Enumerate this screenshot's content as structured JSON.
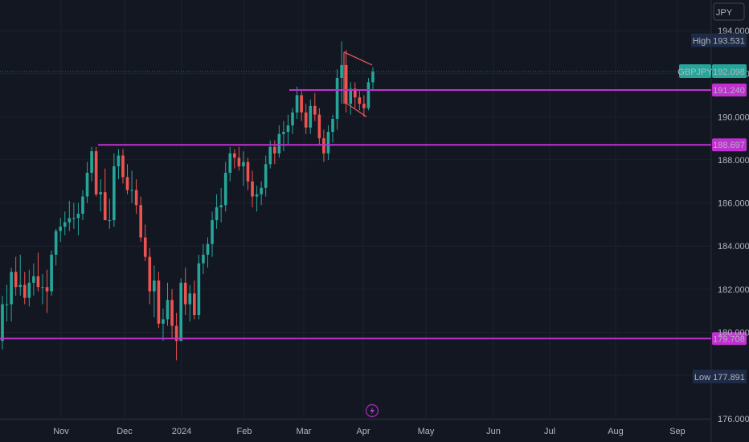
{
  "currency_button": "JPY",
  "symbol": "GBPJPY",
  "last_price": "192.098",
  "high": {
    "label": "High",
    "value": "193.531"
  },
  "low": {
    "label": "Low",
    "value": "177.891"
  },
  "colors": {
    "background": "#131722",
    "up": "#26a69a",
    "down": "#ef5350",
    "level_line": "#c030d0",
    "pattern_line": "#f05a5a",
    "grid": "#1e222d"
  },
  "chart_data": {
    "type": "candlestick",
    "price_axis": {
      "ticks": [
        "194.000",
        "192.000",
        "190.000",
        "188.000",
        "186.000",
        "184.000",
        "182.000",
        "180.000",
        "176.000"
      ],
      "ylim": [
        176,
        195.3
      ]
    },
    "time_axis": {
      "ticks": [
        "Nov",
        "Dec",
        "2024",
        "Feb",
        "Mar",
        "Apr",
        "May",
        "Jun",
        "Jul",
        "Aug",
        "Sep"
      ]
    },
    "horizontal_levels": [
      "191.240",
      "188.697",
      "179.708"
    ],
    "candles": [
      [
        179.6,
        181.7,
        179.2,
        181.3
      ],
      [
        181.3,
        182.2,
        180.5,
        181.3
      ],
      [
        181.3,
        183.0,
        180.5,
        182.8
      ],
      [
        182.8,
        183.5,
        181.7,
        182.1
      ],
      [
        182.1,
        183.6,
        181.7,
        182.2
      ],
      [
        182.2,
        182.8,
        181.3,
        181.6
      ],
      [
        181.6,
        182.9,
        181.2,
        182.3
      ],
      [
        182.3,
        183.2,
        181.7,
        182.6
      ],
      [
        182.6,
        183.7,
        181.9,
        182.1
      ],
      [
        182.1,
        182.7,
        181.3,
        182.1
      ],
      [
        182.1,
        182.9,
        180.9,
        181.9
      ],
      [
        181.9,
        183.8,
        181.7,
        183.6
      ],
      [
        183.6,
        184.8,
        183.1,
        184.7
      ],
      [
        184.7,
        185.3,
        184.2,
        184.9
      ],
      [
        184.9,
        185.6,
        184.5,
        185.1
      ],
      [
        185.1,
        186.1,
        184.7,
        185.3
      ],
      [
        185.3,
        186.0,
        184.8,
        185.3
      ],
      [
        185.3,
        186.0,
        184.5,
        185.5
      ],
      [
        185.5,
        186.6,
        185.2,
        186.3
      ],
      [
        186.3,
        187.9,
        186.0,
        187.4
      ],
      [
        187.4,
        188.6,
        187.0,
        188.4
      ],
      [
        188.4,
        188.6,
        186.3,
        186.4
      ],
      [
        186.4,
        187.1,
        185.6,
        186.5
      ],
      [
        186.5,
        187.6,
        185.2,
        185.2
      ],
      [
        185.2,
        186.2,
        184.8,
        185.2
      ],
      [
        185.2,
        188.3,
        184.9,
        187.7
      ],
      [
        187.7,
        188.5,
        187.1,
        188.2
      ],
      [
        188.2,
        188.5,
        186.9,
        187.2
      ],
      [
        187.2,
        187.8,
        186.4,
        186.6
      ],
      [
        186.6,
        187.5,
        186.0,
        186.6
      ],
      [
        186.6,
        187.1,
        185.5,
        185.9
      ],
      [
        185.9,
        186.3,
        184.2,
        184.4
      ],
      [
        184.4,
        185.0,
        183.3,
        183.5
      ],
      [
        183.5,
        183.9,
        181.3,
        181.9
      ],
      [
        181.9,
        183.1,
        180.7,
        182.4
      ],
      [
        182.4,
        182.8,
        180.2,
        180.4
      ],
      [
        180.4,
        181.1,
        179.6,
        180.6
      ],
      [
        180.6,
        182.3,
        180.3,
        181.5
      ],
      [
        181.5,
        182.0,
        179.7,
        180.3
      ],
      [
        180.3,
        180.9,
        178.7,
        179.6
      ],
      [
        179.6,
        182.5,
        179.6,
        182.3
      ],
      [
        182.3,
        183.0,
        180.8,
        181.3
      ],
      [
        181.3,
        182.2,
        180.5,
        181.8
      ],
      [
        181.8,
        182.4,
        180.6,
        180.8
      ],
      [
        180.8,
        183.6,
        180.6,
        183.2
      ],
      [
        183.2,
        184.1,
        182.7,
        183.6
      ],
      [
        183.6,
        184.4,
        183.0,
        184.1
      ],
      [
        184.1,
        185.6,
        183.5,
        185.2
      ],
      [
        185.2,
        186.4,
        184.8,
        185.8
      ],
      [
        185.8,
        186.7,
        185.1,
        185.9
      ],
      [
        185.9,
        187.9,
        185.6,
        187.4
      ],
      [
        187.4,
        188.6,
        187.0,
        188.3
      ],
      [
        188.3,
        188.5,
        187.6,
        188.1
      ],
      [
        188.1,
        188.6,
        187.5,
        187.7
      ],
      [
        187.7,
        188.4,
        186.8,
        187.9
      ],
      [
        187.9,
        188.1,
        186.6,
        187.0
      ],
      [
        187.0,
        187.5,
        185.8,
        186.3
      ],
      [
        186.3,
        186.8,
        185.6,
        186.4
      ],
      [
        186.4,
        187.0,
        185.9,
        186.7
      ],
      [
        186.7,
        188.2,
        186.3,
        187.8
      ],
      [
        187.8,
        188.9,
        187.6,
        188.6
      ],
      [
        188.6,
        188.9,
        187.8,
        188.3
      ],
      [
        188.3,
        189.6,
        188.1,
        189.2
      ],
      [
        189.2,
        189.8,
        188.4,
        189.3
      ],
      [
        189.3,
        190.1,
        188.7,
        189.6
      ],
      [
        189.6,
        190.4,
        189.2,
        190.2
      ],
      [
        190.2,
        191.4,
        189.9,
        191.0
      ],
      [
        191.0,
        191.2,
        189.8,
        190.2
      ],
      [
        190.2,
        190.6,
        189.2,
        189.5
      ],
      [
        189.5,
        190.8,
        189.2,
        190.5
      ],
      [
        190.5,
        191.1,
        189.8,
        190.1
      ],
      [
        190.1,
        190.4,
        188.7,
        189.0
      ],
      [
        189.0,
        189.4,
        187.9,
        188.3
      ],
      [
        188.3,
        189.6,
        188.0,
        189.3
      ],
      [
        189.3,
        190.1,
        188.8,
        189.9
      ],
      [
        189.9,
        192.2,
        189.4,
        191.8
      ],
      [
        191.8,
        193.5,
        190.6,
        192.4
      ],
      [
        192.4,
        193.1,
        190.2,
        190.6
      ],
      [
        190.6,
        191.6,
        190.1,
        191.3
      ],
      [
        191.3,
        191.6,
        190.4,
        190.9
      ],
      [
        190.9,
        191.2,
        190.3,
        190.6
      ],
      [
        190.6,
        191.0,
        190.0,
        190.4
      ],
      [
        190.4,
        191.8,
        190.3,
        191.6
      ],
      [
        191.6,
        192.3,
        191.2,
        192.1
      ]
    ]
  }
}
